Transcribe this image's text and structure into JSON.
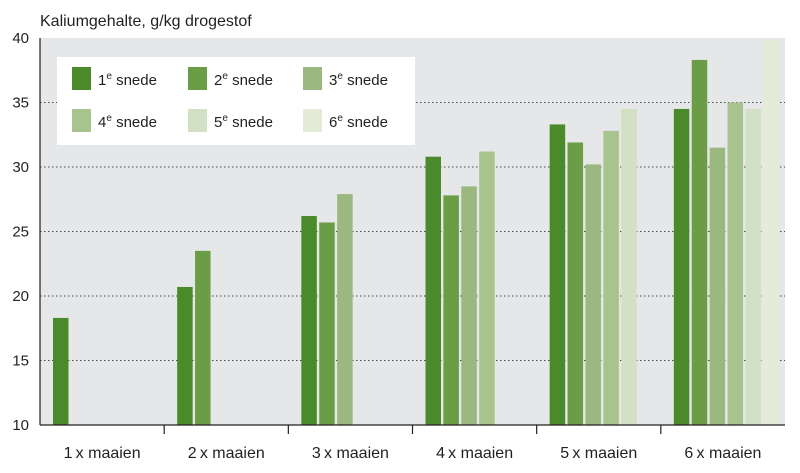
{
  "chart_data": {
    "type": "bar",
    "title": "Kaliumgehalte, g/kg drogestof",
    "ylim": [
      10,
      40
    ],
    "yticks": [
      10,
      15,
      20,
      25,
      30,
      35,
      40
    ],
    "grid": "dotted horizontal",
    "legend_placement": "top-left",
    "categories": [
      "1 x maaien",
      "2 x maaien",
      "3 x maaien",
      "4 x maaien",
      "5 x maaien",
      "6 x maaien"
    ],
    "series": [
      {
        "name": "1e snede",
        "legend_num": "1",
        "legend_sup": "e",
        "legend_word": "snede",
        "color": "#4a8a2a",
        "values": [
          18.3,
          20.7,
          26.2,
          30.8,
          33.3,
          34.5
        ]
      },
      {
        "name": "2e snede",
        "legend_num": "2",
        "legend_sup": "e",
        "legend_word": "snede",
        "color": "#6a9d45",
        "values": [
          null,
          23.5,
          25.7,
          27.8,
          31.9,
          38.3
        ]
      },
      {
        "name": "3e snede",
        "legend_num": "3",
        "legend_sup": "e",
        "legend_word": "snede",
        "color": "#9ab880",
        "values": [
          null,
          null,
          27.9,
          28.5,
          30.2,
          31.5
        ]
      },
      {
        "name": "4e snede",
        "legend_num": "4",
        "legend_sup": "e",
        "legend_word": "snede",
        "color": "#a7c38e",
        "values": [
          null,
          null,
          null,
          31.2,
          32.8,
          35.0
        ]
      },
      {
        "name": "5e snede",
        "legend_num": "5",
        "legend_sup": "e",
        "legend_word": "snede",
        "color": "#d2e1c3",
        "values": [
          null,
          null,
          null,
          null,
          34.5,
          34.5
        ]
      },
      {
        "name": "6e snede",
        "legend_num": "6",
        "legend_sup": "e",
        "legend_word": "snede",
        "color": "#e4ecd8",
        "values": [
          null,
          null,
          null,
          null,
          null,
          39.8
        ]
      }
    ],
    "colors": {
      "background": "#e6e7e8",
      "legend_background": "#ffffff",
      "grid": "#4a4a4a",
      "text": "#231f20"
    }
  }
}
